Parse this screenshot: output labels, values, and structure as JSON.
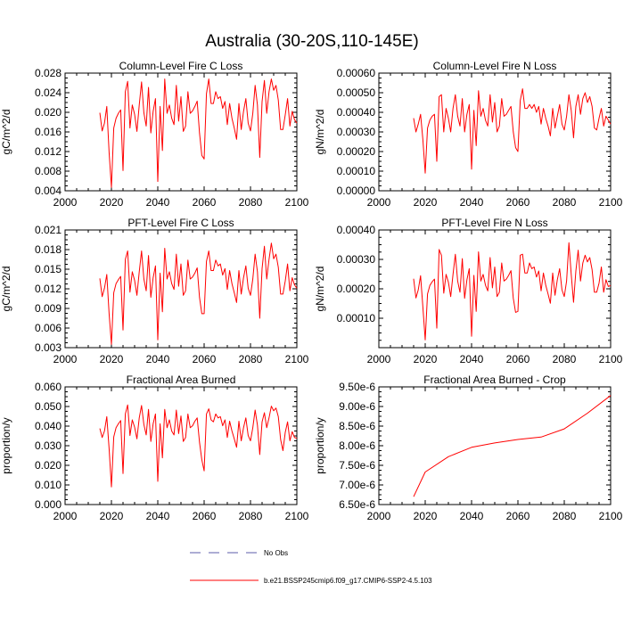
{
  "title": "Australia (30-20S,110-145E)",
  "colors": {
    "series": "#ff0000",
    "obs": "#5b5ba8",
    "axis": "#000000"
  },
  "legend": [
    {
      "label": "No Obs",
      "style": "dashed",
      "color": "#5b5ba8"
    },
    {
      "label": "b.e21.BSSP245cmip6.f09_g17.CMIP6-SSP2-4.5.103",
      "style": "solid",
      "color": "#ff0000"
    }
  ],
  "chart_data": [
    {
      "type": "line",
      "title": "Column-Level Fire C Loss",
      "ylabel": "gC/m^2/d",
      "xlabel": "",
      "xlim": [
        2000,
        2100
      ],
      "ylim": [
        0.004,
        0.028
      ],
      "xticks": [
        "2000",
        "2020",
        "2040",
        "2060",
        "2080",
        "2100"
      ],
      "yticks": [
        "0.004",
        "0.008",
        "0.012",
        "0.016",
        "0.020",
        "0.024",
        "0.028"
      ],
      "series": [
        {
          "name": "b.e21.BSSP245cmip6.f09_g17.CMIP6-SSP2-4.5.103",
          "x_start": 2015,
          "x_step": 1,
          "values": [
            0.0199,
            0.0162,
            0.0178,
            0.0212,
            0.0118,
            0.0047,
            0.0168,
            0.0188,
            0.0198,
            0.0205,
            0.0081,
            0.0242,
            0.0263,
            0.0168,
            0.0215,
            0.0196,
            0.0161,
            0.0215,
            0.0262,
            0.0199,
            0.0172,
            0.0251,
            0.0158,
            0.0202,
            0.0228,
            0.0059,
            0.0212,
            0.0122,
            0.0268,
            0.0198,
            0.0215,
            0.0188,
            0.0175,
            0.0255,
            0.0182,
            0.0232,
            0.0161,
            0.0172,
            0.0242,
            0.0198,
            0.0203,
            0.0212,
            0.0223,
            0.0158,
            0.0112,
            0.0105,
            0.0238,
            0.0268,
            0.0218,
            0.0218,
            0.0242,
            0.0228,
            0.0232,
            0.0208,
            0.0222,
            0.0175,
            0.0218,
            0.0188,
            0.0168,
            0.0145,
            0.0218,
            0.0165,
            0.0202,
            0.0228,
            0.0178,
            0.0162,
            0.0198,
            0.0255,
            0.0215,
            0.0108,
            0.0222,
            0.0265,
            0.0198,
            0.0242,
            0.0268,
            0.0245,
            0.0255,
            0.0225,
            0.0165,
            0.0165,
            0.0195,
            0.0228,
            0.0172,
            0.0202,
            0.0185,
            0.0178
          ]
        }
      ]
    },
    {
      "type": "line",
      "title": "Column-Level Fire N Loss",
      "ylabel": "gN/m^2/d",
      "xlabel": "",
      "xlim": [
        2000,
        2100
      ],
      "ylim": [
        0.0,
        0.0006
      ],
      "xticks": [
        "2000",
        "2020",
        "2040",
        "2060",
        "2080",
        "2100"
      ],
      "yticks": [
        "0.00000",
        "0.00010",
        "0.00020",
        "0.00030",
        "0.00040",
        "0.00050",
        "0.00060"
      ],
      "series": [
        {
          "name": "b.e21.BSSP245cmip6.f09_g17.CMIP6-SSP2-4.5.103",
          "x_start": 2015,
          "x_step": 1,
          "values": [
            0.00037,
            0.0003,
            0.00034,
            0.00039,
            0.00026,
            9e-05,
            0.00032,
            0.00036,
            0.00038,
            0.00039,
            0.00015,
            0.00048,
            0.00049,
            0.0003,
            0.00042,
            0.00037,
            0.0003,
            0.00042,
            0.00049,
            0.00038,
            0.00033,
            0.00047,
            0.0003,
            0.00039,
            0.00044,
            0.00011,
            0.00041,
            0.00023,
            0.00051,
            0.00038,
            0.00042,
            0.00036,
            0.00033,
            0.00049,
            0.00035,
            0.00045,
            0.0003,
            0.00033,
            0.00047,
            0.00038,
            0.00039,
            0.00041,
            0.00043,
            0.0003,
            0.00022,
            0.0002,
            0.00046,
            0.00052,
            0.00042,
            0.00042,
            0.00044,
            0.00042,
            0.00044,
            0.0004,
            0.00043,
            0.00034,
            0.00042,
            0.00037,
            0.00033,
            0.00028,
            0.00042,
            0.00032,
            0.00038,
            0.00044,
            0.00034,
            0.00031,
            0.00038,
            0.00049,
            0.00041,
            0.00027,
            0.00043,
            0.00049,
            0.00039,
            0.00047,
            0.0005,
            0.00045,
            0.00048,
            0.00043,
            0.00032,
            0.00031,
            0.00037,
            0.00042,
            0.00033,
            0.00038,
            0.00036,
            0.00034
          ]
        }
      ]
    },
    {
      "type": "line",
      "title": "PFT-Level Fire C Loss",
      "ylabel": "gC/m^2/d",
      "xlabel": "",
      "xlim": [
        2000,
        2100
      ],
      "ylim": [
        0.003,
        0.021
      ],
      "xticks": [
        "2000",
        "2020",
        "2040",
        "2060",
        "2080",
        "2100"
      ],
      "yticks": [
        "0.003",
        "0.006",
        "0.009",
        "0.012",
        "0.015",
        "0.018",
        "0.021"
      ],
      "series": [
        {
          "name": "b.e21.BSSP245cmip6.f09_g17.CMIP6-SSP2-4.5.103",
          "x_start": 2015,
          "x_step": 1,
          "values": [
            0.0136,
            0.0108,
            0.0121,
            0.0142,
            0.0082,
            0.0035,
            0.0114,
            0.0128,
            0.0134,
            0.0139,
            0.0057,
            0.0165,
            0.0178,
            0.0115,
            0.0146,
            0.0133,
            0.011,
            0.0146,
            0.0178,
            0.0135,
            0.0117,
            0.0171,
            0.0107,
            0.0137,
            0.0155,
            0.0042,
            0.0144,
            0.0085,
            0.0182,
            0.0135,
            0.0146,
            0.0128,
            0.0119,
            0.0173,
            0.0124,
            0.0158,
            0.011,
            0.0117,
            0.0164,
            0.0135,
            0.0138,
            0.0144,
            0.0152,
            0.0107,
            0.0082,
            0.0082,
            0.0162,
            0.0178,
            0.0148,
            0.0148,
            0.0164,
            0.0155,
            0.0158,
            0.0141,
            0.0151,
            0.0119,
            0.0148,
            0.0128,
            0.0114,
            0.0099,
            0.0148,
            0.0112,
            0.0137,
            0.0155,
            0.0121,
            0.011,
            0.0135,
            0.0173,
            0.0146,
            0.0075,
            0.0151,
            0.0185,
            0.0135,
            0.0165,
            0.019,
            0.0166,
            0.0173,
            0.0153,
            0.0112,
            0.0112,
            0.0132,
            0.0158,
            0.0117,
            0.0137,
            0.0126,
            0.0121
          ]
        }
      ]
    },
    {
      "type": "line",
      "title": "PFT-Level Fire N Loss",
      "ylabel": "gN/m^2/d",
      "xlabel": "",
      "xlim": [
        2000,
        2100
      ],
      "ylim": [
        5e-05,
        0.0004
      ],
      "xticks": [
        "2000",
        "2020",
        "2040",
        "2060",
        "2080",
        "2100"
      ],
      "yticks": [
        "",
        "0.00010",
        "0.00020",
        "0.00030",
        "0.00040"
      ],
      "series": [
        {
          "name": "b.e21.BSSP245cmip6.f09_g17.CMIP6-SSP2-4.5.103",
          "x_start": 2015,
          "x_step": 1,
          "values": [
            0.000255,
            0.000198,
            0.000222,
            0.000264,
            0.00017,
            7.3e-05,
            0.00021,
            0.000235,
            0.000246,
            0.000254,
            0.000108,
            0.000342,
            0.000325,
            0.000212,
            0.000268,
            0.000245,
            0.000202,
            0.000268,
            0.000328,
            0.000248,
            0.000215,
            0.000315,
            0.000197,
            0.000252,
            0.000285,
            8.4e-05,
            0.000265,
            0.000158,
            0.000335,
            0.000248,
            0.000268,
            0.000236,
            0.000219,
            0.000318,
            0.000228,
            0.00029,
            0.000202,
            0.000215,
            0.000302,
            0.000248,
            0.000254,
            0.000265,
            0.000279,
            0.000197,
            0.000155,
            0.000158,
            0.000325,
            0.000328,
            0.000272,
            0.000272,
            0.000302,
            0.000285,
            0.00029,
            0.00026,
            0.000278,
            0.000219,
            0.000272,
            0.000236,
            0.00021,
            0.000182,
            0.000272,
            0.000206,
            0.000252,
            0.000285,
            0.000222,
            0.000202,
            0.000248,
            0.000362,
            0.000268,
            0.000185,
            0.000278,
            0.00034,
            0.000248,
            0.000302,
            0.000325,
            0.000305,
            0.000318,
            0.000282,
            0.000215,
            0.000215,
            0.000242,
            0.00029,
            0.000215,
            0.000252,
            0.000232,
            0.000235
          ]
        }
      ]
    },
    {
      "type": "line",
      "title": "Fractional Area Burned",
      "ylabel": "proportion/y",
      "xlabel": "",
      "xlim": [
        2000,
        2100
      ],
      "ylim": [
        0.0,
        0.06
      ],
      "xticks": [
        "2000",
        "2020",
        "2040",
        "2060",
        "2080",
        "2100"
      ],
      "yticks": [
        "0.000",
        "0.010",
        "0.020",
        "0.030",
        "0.040",
        "0.050",
        "0.060"
      ],
      "series": [
        {
          "name": "b.e21.BSSP245cmip6.f09_g17.CMIP6-SSP2-4.5.103",
          "x_start": 2015,
          "x_step": 1,
          "values": [
            0.0388,
            0.0342,
            0.0375,
            0.0448,
            0.0285,
            0.009,
            0.0345,
            0.0392,
            0.0412,
            0.0428,
            0.0158,
            0.0462,
            0.0508,
            0.0352,
            0.0432,
            0.0395,
            0.0335,
            0.0442,
            0.0505,
            0.0408,
            0.0355,
            0.0485,
            0.0322,
            0.0412,
            0.0462,
            0.0118,
            0.0412,
            0.0238,
            0.0485,
            0.0392,
            0.0432,
            0.0375,
            0.0355,
            0.0482,
            0.0362,
            0.0452,
            0.0322,
            0.0342,
            0.0462,
            0.0392,
            0.0402,
            0.0425,
            0.0442,
            0.0318,
            0.0228,
            0.0172,
            0.0462,
            0.0488,
            0.0432,
            0.0422,
            0.0462,
            0.0442,
            0.0448,
            0.0402,
            0.0432,
            0.0342,
            0.0425,
            0.0375,
            0.0335,
            0.0292,
            0.0425,
            0.0325,
            0.0392,
            0.0442,
            0.0352,
            0.0325,
            0.0392,
            0.0482,
            0.0405,
            0.0255,
            0.0422,
            0.0468,
            0.0392,
            0.0442,
            0.0502,
            0.0478,
            0.0492,
            0.0448,
            0.0332,
            0.0275,
            0.0368,
            0.0422,
            0.0325,
            0.0372,
            0.0342,
            0.0338
          ]
        }
      ]
    },
    {
      "type": "line",
      "title": "Fractional Area Burned - Crop",
      "ylabel": "proportion/y",
      "xlabel": "",
      "xlim": [
        2000,
        2100
      ],
      "ylim": [
        6.5e-06,
        9.5e-06
      ],
      "xticks": [
        "2000",
        "2020",
        "2040",
        "2060",
        "2080",
        "2100"
      ],
      "yticks": [
        "6.50e-6",
        "7.00e-6",
        "7.50e-6",
        "8.00e-6",
        "8.50e-6",
        "9.00e-6",
        "9.50e-6"
      ],
      "series": [
        {
          "name": "b.e21.BSSP245cmip6.f09_g17.CMIP6-SSP2-4.5.103",
          "x": [
            2015,
            2020,
            2030,
            2040,
            2050,
            2060,
            2070,
            2080,
            2090,
            2100
          ],
          "values": [
            6.7e-06,
            7.33e-06,
            7.72e-06,
            7.96e-06,
            8.07e-06,
            8.16e-06,
            8.22e-06,
            8.43e-06,
            8.83e-06,
            9.28e-06
          ]
        }
      ]
    }
  ]
}
